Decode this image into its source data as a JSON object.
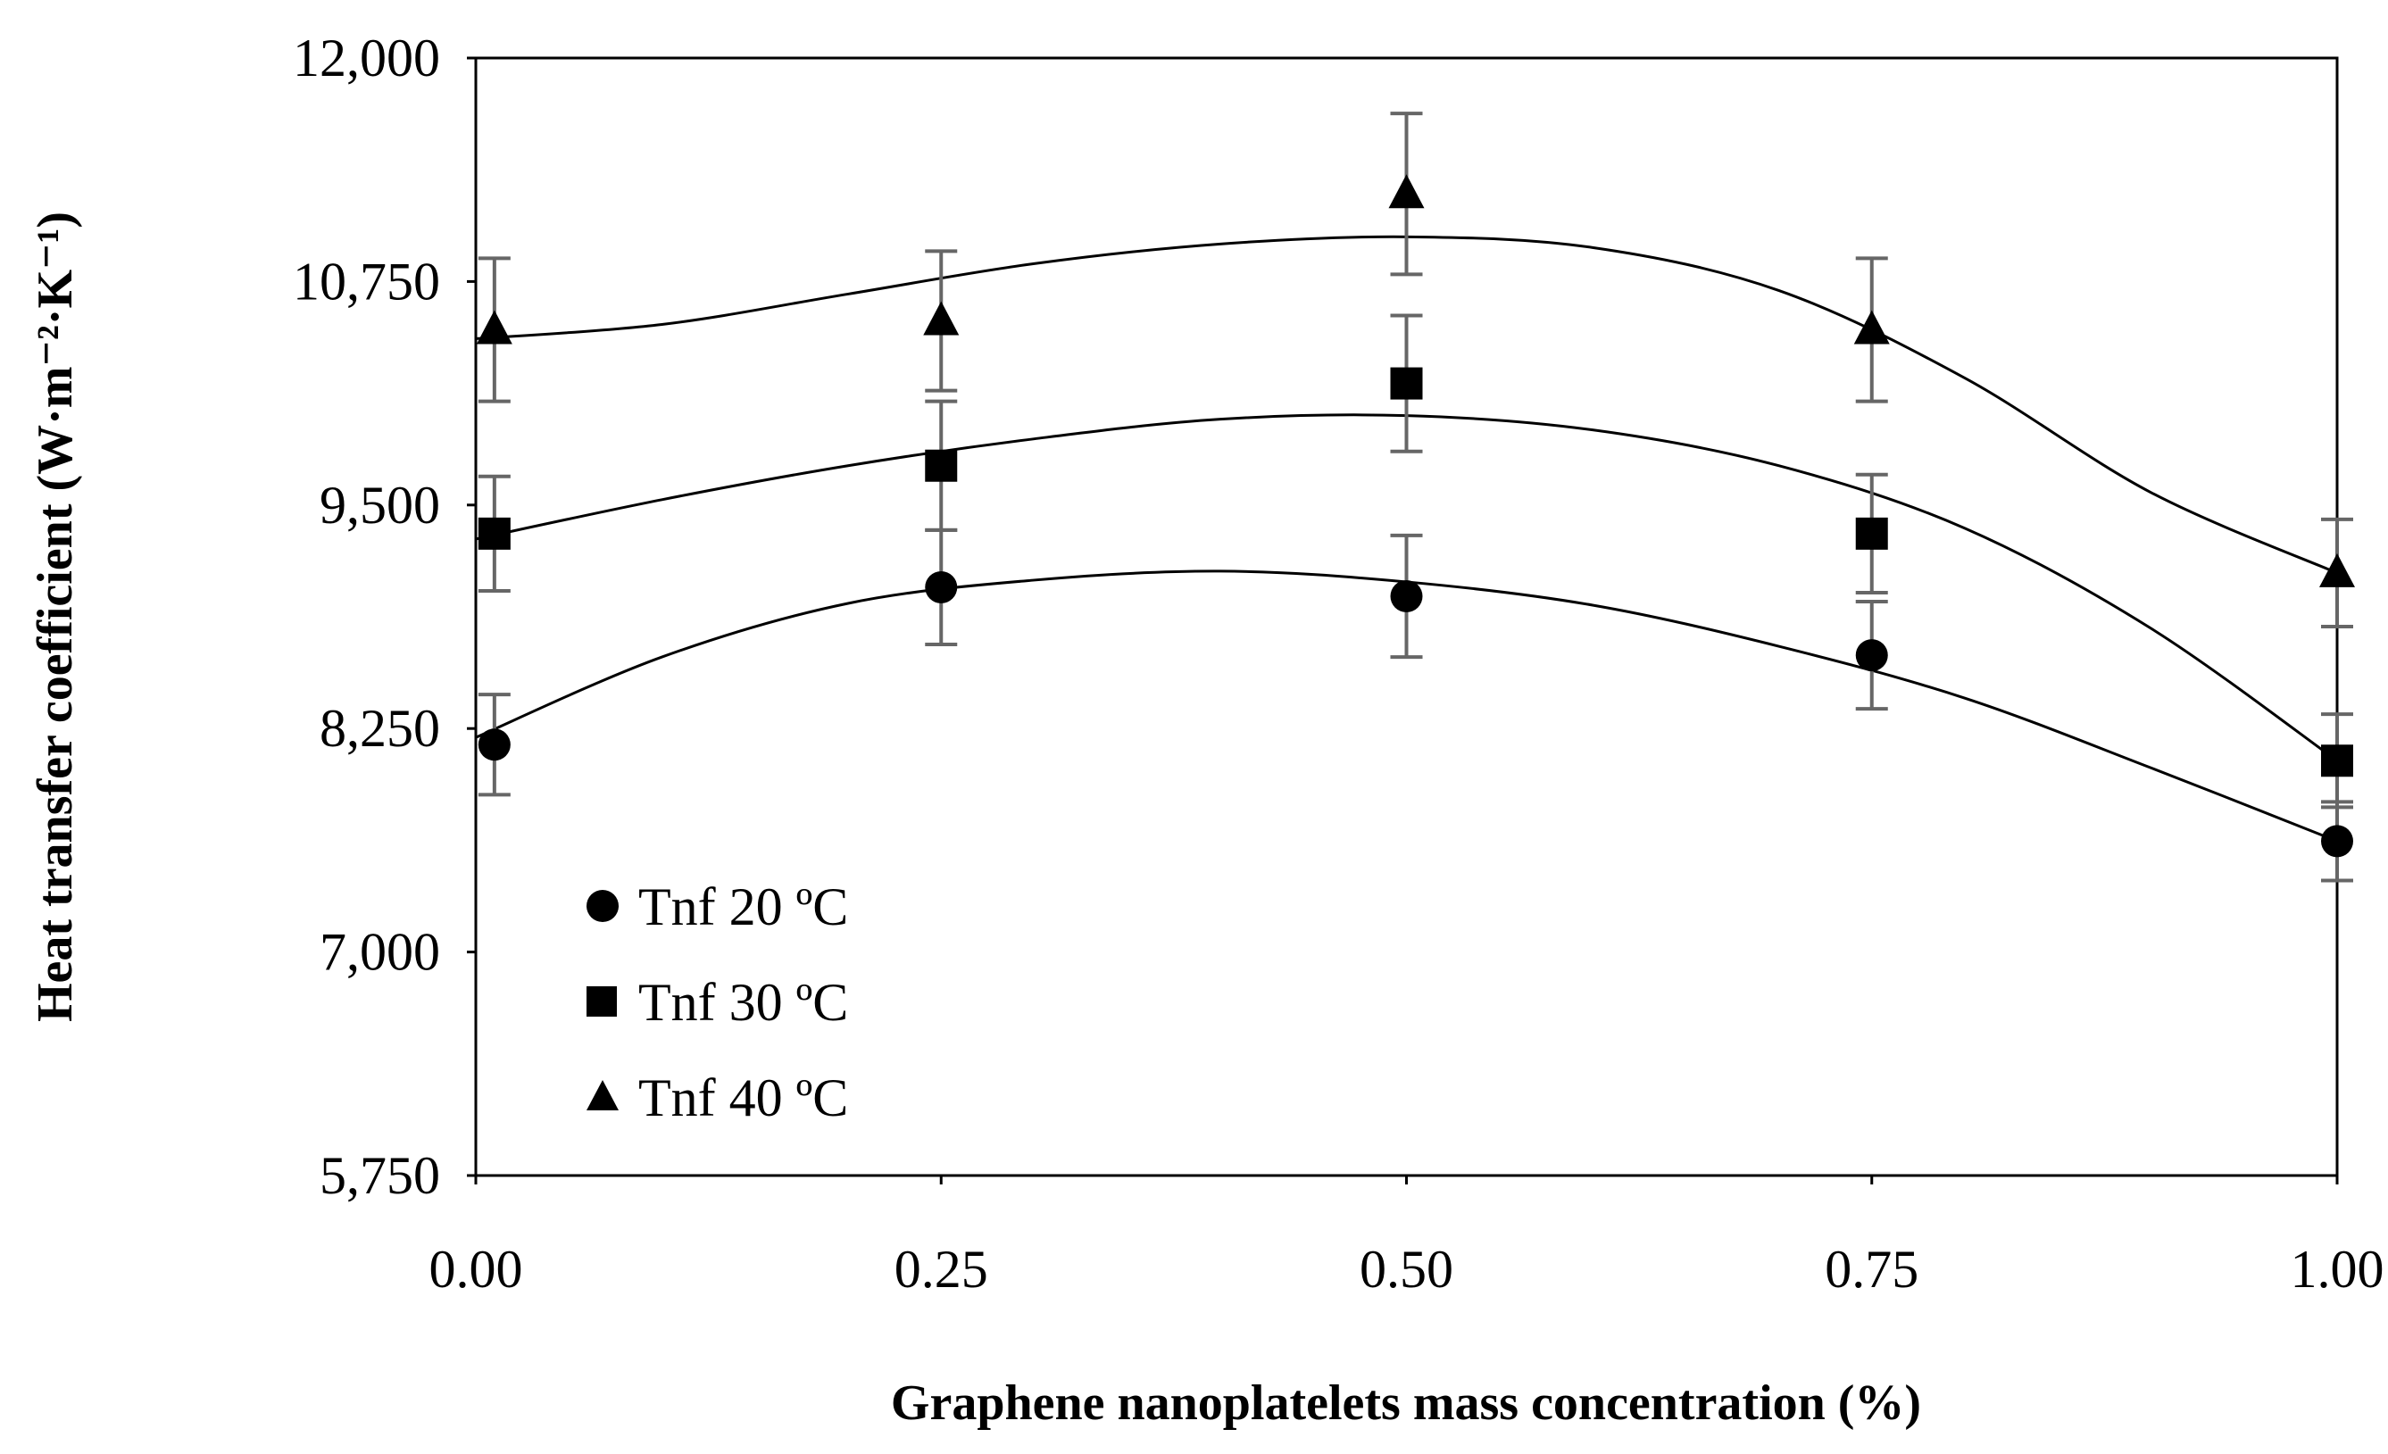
{
  "chart_data": {
    "type": "scatter",
    "title": "",
    "xlabel": "Graphene nanoplatelets mass concentration (%)",
    "ylabel": "Heat transfer coefficient (W·m⁻²·K⁻¹)",
    "xlim": [
      0.0,
      1.0
    ],
    "ylim": [
      5750,
      12000
    ],
    "x_ticks": [
      "0.00",
      "0.25",
      "0.50",
      "0.75",
      "1.00"
    ],
    "y_ticks": [
      "5,750",
      "7,000",
      "8,250",
      "9,500",
      "10,750",
      "12,000"
    ],
    "legend_position": "bottom-left",
    "series": [
      {
        "name": "Tnf 20 ºC",
        "marker": "circle",
        "x": [
          0.01,
          0.25,
          0.5,
          0.75,
          1.0
        ],
        "y": [
          8160,
          9040,
          8990,
          8660,
          7620
        ],
        "error": [
          280,
          320,
          340,
          300,
          220
        ],
        "fit": [
          8200,
          8650,
          8950,
          9080,
          9130,
          9070,
          8940,
          8710,
          8420,
          8030,
          7620
        ]
      },
      {
        "name": "Tnf 30 ºC",
        "marker": "square",
        "x": [
          0.01,
          0.25,
          0.5,
          0.75,
          1.0
        ],
        "y": [
          9340,
          9720,
          10180,
          9340,
          8070
        ],
        "error": [
          320,
          360,
          380,
          330,
          260
        ],
        "fit": [
          9310,
          9530,
          9720,
          9870,
          9980,
          10000,
          9920,
          9720,
          9370,
          8810,
          8070
        ]
      },
      {
        "name": "Tnf 40 ºC",
        "marker": "triangle",
        "x": [
          0.01,
          0.25,
          0.5,
          0.75,
          1.0
        ],
        "y": [
          10480,
          10530,
          11240,
          10480,
          9120
        ],
        "error": [
          400,
          390,
          450,
          400,
          300
        ],
        "fit": [
          10430,
          10510,
          10680,
          10850,
          10960,
          11000,
          10940,
          10700,
          10210,
          9570,
          9120
        ]
      }
    ]
  }
}
